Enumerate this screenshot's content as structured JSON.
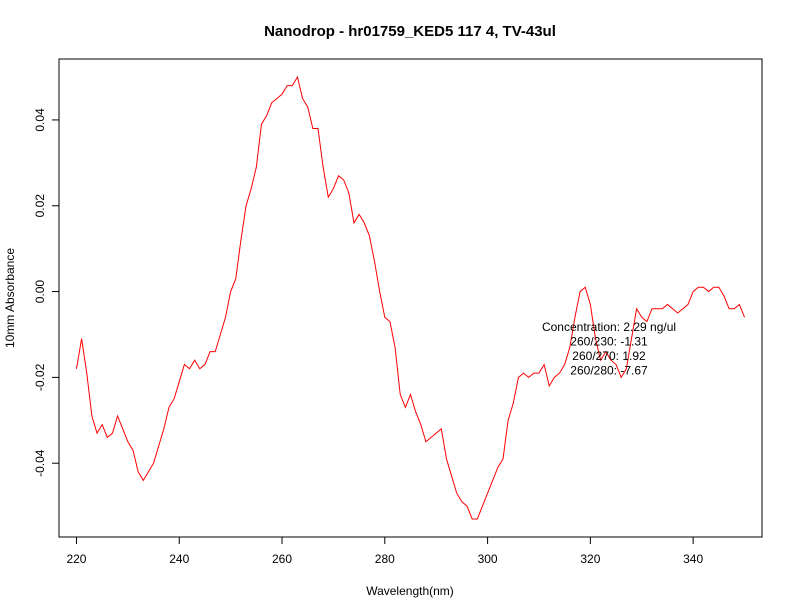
{
  "chart_data": {
    "type": "line",
    "title": "Nanodrop - hr01759_KED5 117 4, TV-43ul",
    "xlabel": "Wavelength(nm)",
    "ylabel": "10mm Absorbance",
    "xlim": [
      216.6,
      353.4
    ],
    "ylim": [
      -0.0572,
      0.0542
    ],
    "xticks": [
      220,
      240,
      260,
      280,
      300,
      320,
      340
    ],
    "xtick_labels": [
      "220",
      "240",
      "260",
      "280",
      "300",
      "320",
      "340"
    ],
    "yticks": [
      -0.04,
      -0.02,
      0.0,
      0.02,
      0.04
    ],
    "ytick_labels": [
      "-0.04",
      "-0.02",
      "0.00",
      "0.02",
      "0.04"
    ],
    "grid": false,
    "series": [
      {
        "color": "#ff0000",
        "x": [
          220,
          221,
          222,
          223,
          224,
          225,
          226,
          227,
          228,
          229,
          230,
          231,
          232,
          233,
          234,
          235,
          236,
          237,
          238,
          239,
          240,
          241,
          242,
          243,
          244,
          245,
          246,
          247,
          248,
          249,
          250,
          251,
          252,
          253,
          254,
          255,
          256,
          257,
          258,
          259,
          260,
          261,
          262,
          263,
          264,
          265,
          266,
          267,
          268,
          269,
          270,
          271,
          272,
          273,
          274,
          275,
          276,
          277,
          278,
          279,
          280,
          281,
          282,
          283,
          284,
          285,
          286,
          287,
          288,
          289,
          290,
          291,
          292,
          293,
          294,
          295,
          296,
          297,
          298,
          299,
          300,
          301,
          302,
          303,
          304,
          305,
          306,
          307,
          308,
          309,
          310,
          311,
          312,
          313,
          314,
          315,
          316,
          317,
          318,
          319,
          320,
          321,
          322,
          323,
          324,
          325,
          326,
          327,
          328,
          329,
          330,
          331,
          332,
          333,
          334,
          335,
          336,
          337,
          338,
          339,
          340,
          341,
          342,
          343,
          344,
          345,
          346,
          347,
          348,
          349,
          350
        ],
        "y": [
          -0.018,
          -0.011,
          -0.019,
          -0.029,
          -0.033,
          -0.031,
          -0.034,
          -0.033,
          -0.029,
          -0.032,
          -0.035,
          -0.037,
          -0.042,
          -0.044,
          -0.042,
          -0.04,
          -0.036,
          -0.032,
          -0.027,
          -0.025,
          -0.021,
          -0.017,
          -0.018,
          -0.016,
          -0.018,
          -0.017,
          -0.014,
          -0.014,
          -0.01,
          -0.006,
          0.0,
          0.003,
          0.012,
          0.02,
          0.024,
          0.029,
          0.039,
          0.041,
          0.044,
          0.045,
          0.046,
          0.048,
          0.048,
          0.05,
          0.045,
          0.043,
          0.038,
          0.038,
          0.029,
          0.022,
          0.024,
          0.027,
          0.026,
          0.023,
          0.016,
          0.018,
          0.016,
          0.013,
          0.007,
          0.0,
          -0.006,
          -0.007,
          -0.013,
          -0.024,
          -0.027,
          -0.024,
          -0.028,
          -0.031,
          -0.035,
          -0.034,
          -0.033,
          -0.032,
          -0.039,
          -0.043,
          -0.047,
          -0.049,
          -0.05,
          -0.053,
          -0.053,
          -0.05,
          -0.047,
          -0.044,
          -0.041,
          -0.039,
          -0.03,
          -0.026,
          -0.02,
          -0.019,
          -0.02,
          -0.019,
          -0.019,
          -0.017,
          -0.022,
          -0.02,
          -0.019,
          -0.017,
          -0.013,
          -0.006,
          0.0,
          0.001,
          -0.003,
          -0.011,
          -0.016,
          -0.014,
          -0.016,
          -0.017,
          -0.02,
          -0.018,
          -0.011,
          -0.004,
          -0.006,
          -0.007,
          -0.004,
          -0.004,
          -0.004,
          -0.003,
          -0.004,
          -0.005,
          -0.004,
          -0.003,
          0.0,
          0.001,
          0.001,
          0.0,
          0.001,
          0.001,
          -0.001,
          -0.004,
          -0.004,
          -0.003,
          -0.006
        ]
      }
    ],
    "annotation": {
      "lines": [
        "Concentration: 2.29 ng/ul",
        "260/230: -1.31",
        "260/270: 1.92",
        "260/280: -7.67"
      ]
    }
  }
}
